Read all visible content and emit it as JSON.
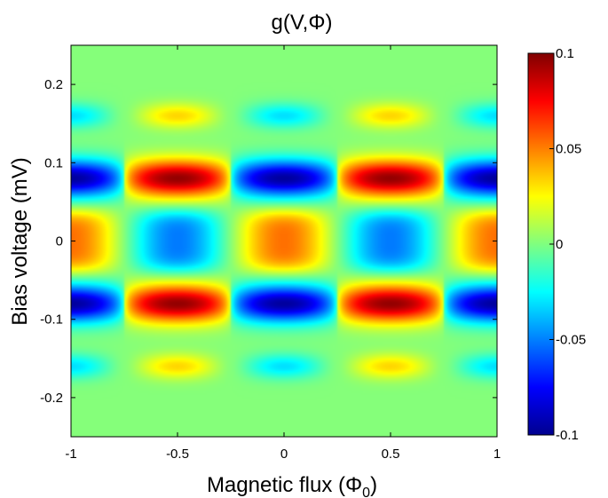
{
  "chart_data": {
    "type": "heatmap",
    "title": "g(V,Φ)",
    "xlabel": "Magnetic flux (Φ",
    "xlabel_sub": "0",
    "xlabel_close": ")",
    "ylabel": "Bias voltage (mV)",
    "xlim": [
      -1,
      1
    ],
    "ylim": [
      -0.25,
      0.25
    ],
    "clim": [
      -0.1,
      0.1
    ],
    "colormap": "jet",
    "x_ticks": [
      -1,
      -0.5,
      0,
      0.5,
      1
    ],
    "x_tick_labels": [
      "-1",
      "-0.5",
      "0",
      "0.5",
      "1"
    ],
    "y_ticks": [
      0.2,
      0.1,
      0,
      -0.1,
      -0.2
    ],
    "y_tick_labels": [
      "0.2",
      "0.1",
      "0",
      "-0.1",
      "-0.2"
    ],
    "colorbar_ticks": [
      0.1,
      0.05,
      0,
      -0.05,
      -0.1
    ],
    "colorbar_tick_labels": [
      "0.1",
      "0.05",
      "0",
      "-0.05",
      "-0.1"
    ],
    "features": [
      {
        "flux": -1,
        "voltage": 0.08,
        "g": -0.095
      },
      {
        "flux": -0.5,
        "voltage": 0.08,
        "g": 0.095
      },
      {
        "flux": 0,
        "voltage": 0.08,
        "g": -0.095
      },
      {
        "flux": 0.5,
        "voltage": 0.08,
        "g": 0.095
      },
      {
        "flux": 1,
        "voltage": 0.08,
        "g": -0.095
      },
      {
        "flux": -1,
        "voltage": -0.08,
        "g": -0.095
      },
      {
        "flux": -0.5,
        "voltage": -0.08,
        "g": 0.095
      },
      {
        "flux": 0,
        "voltage": -0.08,
        "g": -0.095
      },
      {
        "flux": 0.5,
        "voltage": -0.08,
        "g": 0.095
      },
      {
        "flux": 1,
        "voltage": -0.08,
        "g": -0.095
      },
      {
        "flux": -1,
        "voltage": 0,
        "g": 0.05
      },
      {
        "flux": -0.5,
        "voltage": 0,
        "g": -0.05
      },
      {
        "flux": 0,
        "voltage": 0,
        "g": 0.05
      },
      {
        "flux": 0.5,
        "voltage": 0,
        "g": -0.05
      },
      {
        "flux": 1,
        "voltage": 0,
        "g": 0.05
      },
      {
        "flux": -1,
        "voltage": 0.16,
        "g": -0.035
      },
      {
        "flux": -0.5,
        "voltage": 0.16,
        "g": 0.035
      },
      {
        "flux": 0,
        "voltage": 0.16,
        "g": -0.035
      },
      {
        "flux": 0.5,
        "voltage": 0.16,
        "g": 0.035
      },
      {
        "flux": 1,
        "voltage": 0.16,
        "g": -0.035
      },
      {
        "flux": -1,
        "voltage": -0.16,
        "g": -0.035
      },
      {
        "flux": -0.5,
        "voltage": -0.16,
        "g": 0.035
      },
      {
        "flux": 0,
        "voltage": -0.16,
        "g": -0.035
      },
      {
        "flux": 0.5,
        "voltage": -0.16,
        "g": 0.035
      },
      {
        "flux": 1,
        "voltage": -0.16,
        "g": -0.035
      }
    ]
  }
}
